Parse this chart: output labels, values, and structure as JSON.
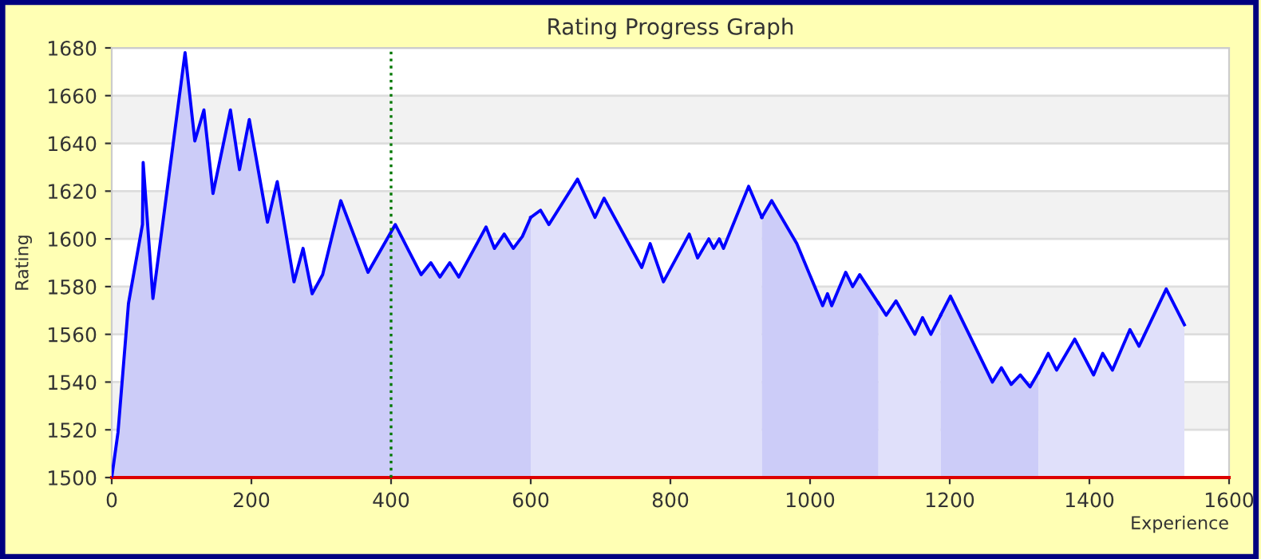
{
  "chart_data": {
    "type": "area",
    "title": "Rating Progress Graph",
    "xlabel": "Experience",
    "ylabel": "Rating",
    "xlim": [
      0,
      1600
    ],
    "ylim": [
      1500,
      1680
    ],
    "xticks": [
      0,
      200,
      400,
      600,
      800,
      1000,
      1200,
      1400,
      1600
    ],
    "yticks": [
      1500,
      1520,
      1540,
      1560,
      1580,
      1600,
      1620,
      1640,
      1660,
      1680
    ],
    "grid": "y",
    "legend": false,
    "ref_lines": [
      {
        "axis": "x",
        "value": 400,
        "color": "#007700",
        "line_style": "dotted"
      }
    ],
    "series": [
      {
        "color": "#ccccf8",
        "x": [
          0,
          9,
          24,
          44,
          45,
          59,
          105,
          119,
          132,
          145,
          170,
          183,
          197,
          223,
          237,
          261,
          274,
          287,
          302,
          328,
          367,
          406,
          443,
          457,
          470,
          484,
          497,
          536,
          548,
          562,
          575,
          588,
          600
        ],
        "values": [
          1500,
          1519,
          1573,
          1606,
          1632,
          1575,
          1678,
          1641,
          1654,
          1619,
          1654,
          1629,
          1650,
          1607,
          1624,
          1582,
          1596,
          1577,
          1585,
          1616,
          1586,
          1606,
          1585,
          1590,
          1584,
          1590,
          1584,
          1605,
          1596,
          1602,
          1596,
          1601,
          1609
        ]
      },
      {
        "color": "#e0e0fa",
        "x": [
          600,
          614,
          626,
          667,
          692,
          705,
          759,
          771,
          790,
          827,
          839,
          855,
          862,
          870,
          876,
          912,
          931
        ],
        "values": [
          1609,
          1612,
          1606,
          1625,
          1609,
          1617,
          1588,
          1598,
          1582,
          1602,
          1592,
          1600,
          1596,
          1600,
          1596,
          1622,
          1609
        ]
      },
      {
        "color": "#ccccf8",
        "x": [
          931,
          945,
          981,
          1018,
          1025,
          1031,
          1051,
          1061,
          1071,
          1098
        ],
        "values": [
          1609,
          1616,
          1598,
          1572,
          1577,
          1572,
          1586,
          1580,
          1585,
          1573
        ]
      },
      {
        "color": "#e0e0fa",
        "x": [
          1098,
          1109,
          1123,
          1150,
          1161,
          1173,
          1187
        ],
        "values": [
          1573,
          1568,
          1574,
          1560,
          1567,
          1560,
          1568
        ]
      },
      {
        "color": "#ccccf8",
        "x": [
          1187,
          1201,
          1261,
          1274,
          1288,
          1301,
          1315,
          1327
        ],
        "values": [
          1568,
          1576,
          1540,
          1546,
          1539,
          1543,
          1538,
          1544
        ]
      },
      {
        "color": "#e0e0fa",
        "x": [
          1327,
          1341,
          1353,
          1379,
          1406,
          1419,
          1433,
          1458,
          1471,
          1510,
          1536
        ],
        "values": [
          1544,
          1552,
          1545,
          1558,
          1543,
          1552,
          1545,
          1562,
          1555,
          1579,
          1564
        ]
      }
    ]
  }
}
